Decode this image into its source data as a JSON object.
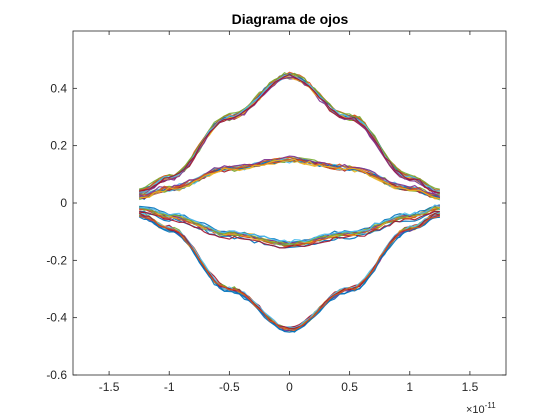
{
  "chart_data": {
    "type": "line",
    "title": "Diagrama de ojos",
    "xlabel": "",
    "ylabel": "",
    "xlim": [
      -1.8e-11,
      1.8e-11
    ],
    "ylim": [
      -0.6,
      0.6
    ],
    "x_tick_values": [
      -1.5,
      -1,
      -0.5,
      0,
      0.5,
      1,
      1.5
    ],
    "x_tick_labels": [
      "-1.5",
      "-1",
      "-0.5",
      "0",
      "0.5",
      "1",
      "1.5"
    ],
    "x_exponent_label": "×10",
    "x_exponent_power": "-11",
    "y_tick_values": [
      -0.6,
      -0.4,
      -0.2,
      0,
      0.2,
      0.4
    ],
    "y_tick_labels": [
      "-0.6",
      "-0.4",
      "-0.2",
      "0",
      "0.2",
      "0.4"
    ],
    "grid": false,
    "x_range_of_traces": [
      -1.25e-11,
      1.25e-11
    ],
    "eye_levels": [
      {
        "x": [
          -1.25e-11,
          -1e-11,
          -5e-12,
          0,
          5e-12,
          1e-11,
          1.25e-11
        ],
        "y": [
          0.04,
          0.09,
          0.3,
          0.445,
          0.3,
          0.09,
          0.04
        ]
      },
      {
        "x": [
          -1.25e-11,
          -1e-11,
          -5e-12,
          0,
          5e-12,
          1e-11,
          1.25e-11
        ],
        "y": [
          0.02,
          0.05,
          0.12,
          0.15,
          0.12,
          0.05,
          0.02
        ]
      },
      {
        "x": [
          -1.25e-11,
          -1e-11,
          -5e-12,
          0,
          5e-12,
          1e-11,
          1.25e-11
        ],
        "y": [
          -0.02,
          -0.05,
          -0.11,
          -0.145,
          -0.11,
          -0.05,
          -0.02
        ]
      },
      {
        "x": [
          -1.25e-11,
          -1e-11,
          -5e-12,
          0,
          5e-12,
          1e-11,
          1.25e-11
        ],
        "y": [
          -0.04,
          -0.09,
          -0.3,
          -0.44,
          -0.3,
          -0.09,
          -0.04
        ]
      }
    ],
    "trace_colors": [
      "#0072BD",
      "#D95319",
      "#EDB120",
      "#7E2F8E",
      "#77AC30",
      "#4DBEEE",
      "#A2142F"
    ]
  }
}
